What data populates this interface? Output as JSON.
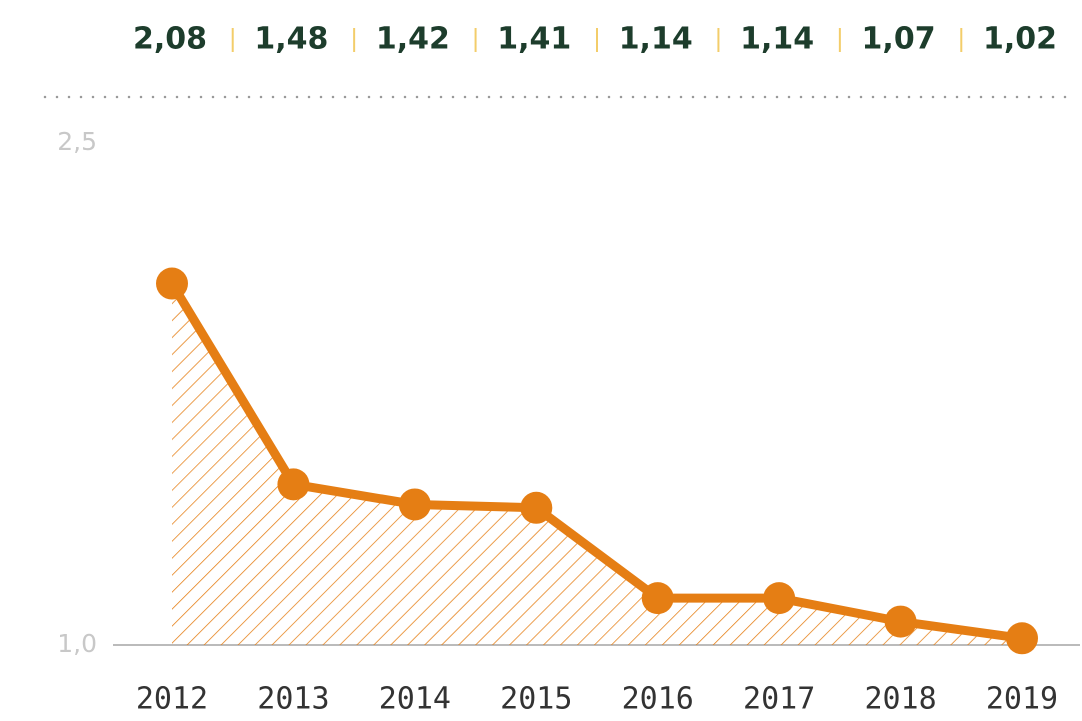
{
  "chart_data": {
    "type": "line",
    "categories": [
      "2012",
      "2013",
      "2014",
      "2015",
      "2016",
      "2017",
      "2018",
      "2019"
    ],
    "values": [
      2.08,
      1.48,
      1.42,
      1.41,
      1.14,
      1.14,
      1.07,
      1.02
    ],
    "value_labels": [
      "2,08",
      "1,48",
      "1,42",
      "1,41",
      "1,14",
      "1,14",
      "1,07",
      "1,02"
    ],
    "color": "#e57e14",
    "area": "hatched",
    "ylim": [
      1,
      2.5
    ],
    "yticks": [
      {
        "value": 1,
        "label": "1,0"
      },
      {
        "value": 2.5,
        "label": "2,5"
      }
    ]
  }
}
